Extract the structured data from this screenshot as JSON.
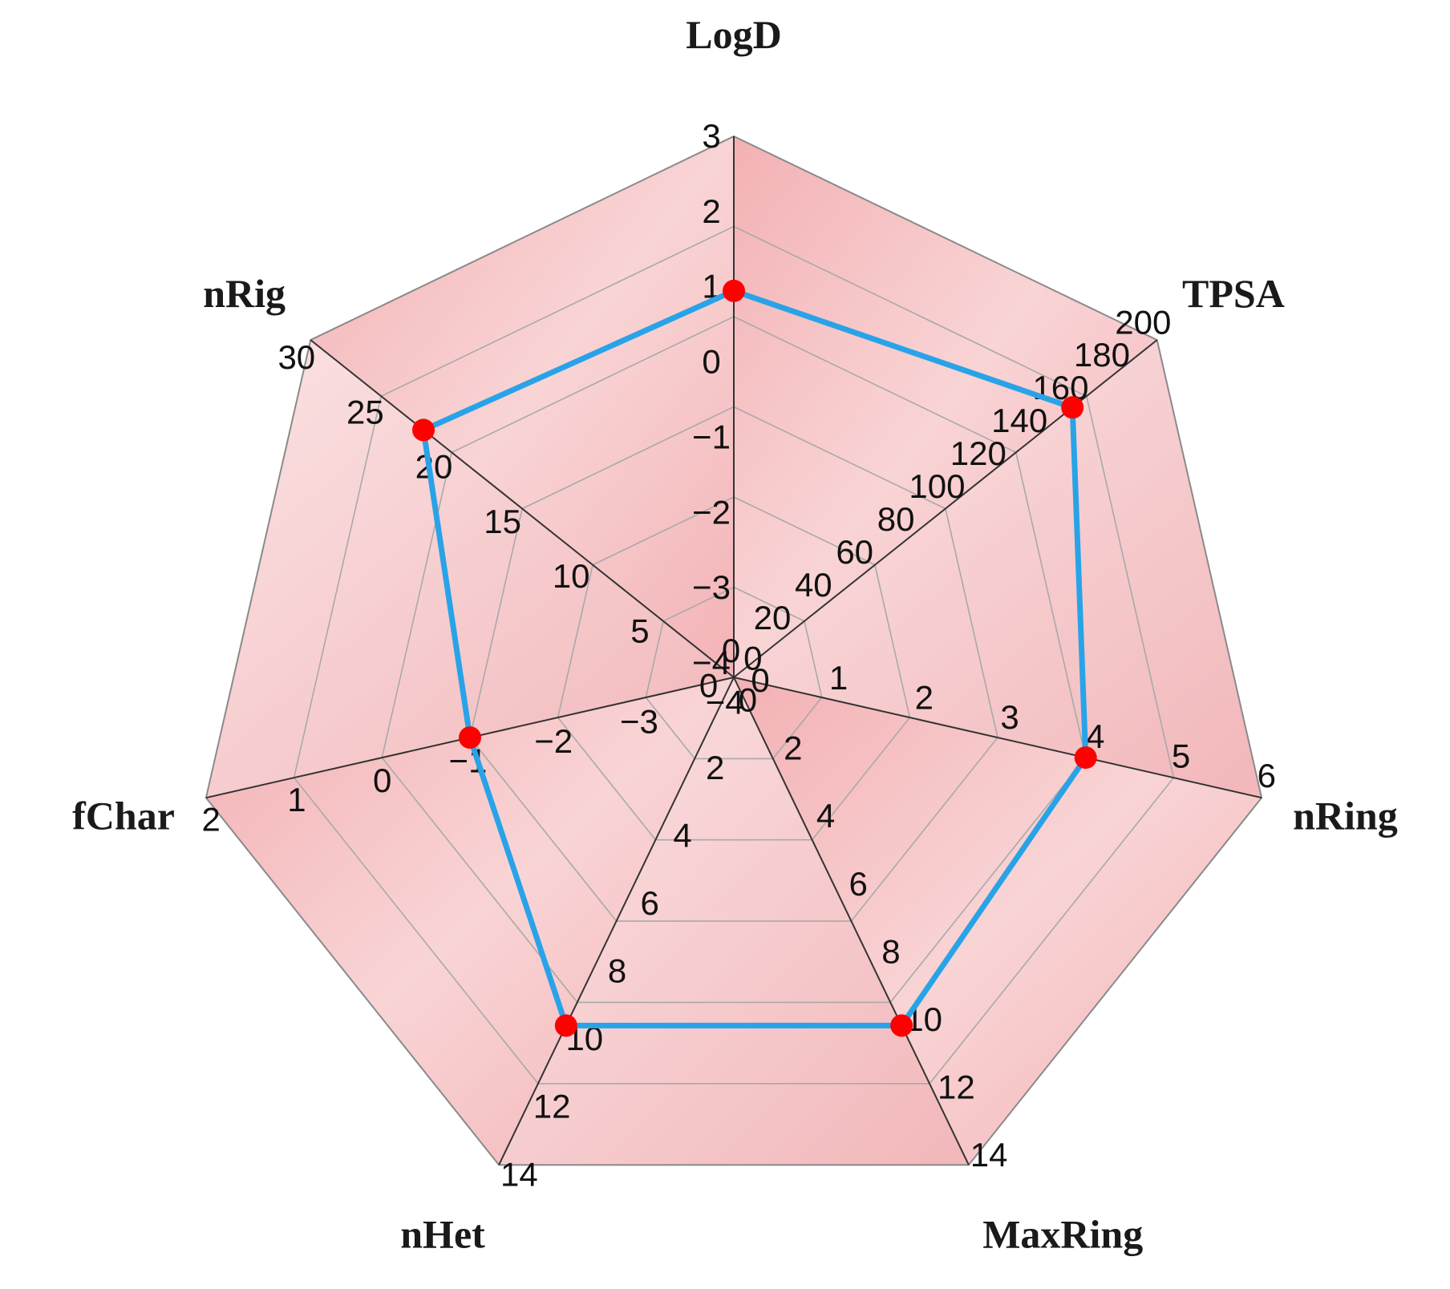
{
  "chart_data": {
    "type": "radar",
    "grid": true,
    "fill_color": "#f6c2c4",
    "line_color": "#29a3e8",
    "marker_color": "#ff0000",
    "axes": [
      {
        "name": "LogD",
        "min": -4,
        "max": 3,
        "ticks": [
          "3",
          "2",
          "1",
          "0",
          "−1",
          "−2",
          "−3",
          "−4"
        ],
        "value": 1
      },
      {
        "name": "TPSA",
        "min": 0,
        "max": 200,
        "ticks": [
          "200",
          "180",
          "160",
          "140",
          "120",
          "100",
          "80",
          "60",
          "40",
          "20",
          "0"
        ],
        "value": 160
      },
      {
        "name": "nRing",
        "min": 0,
        "max": 6,
        "ticks": [
          "6",
          "5",
          "4",
          "3",
          "2",
          "1",
          "0"
        ],
        "value": 4
      },
      {
        "name": "MaxRing",
        "min": 0,
        "max": 14,
        "ticks": [
          "14",
          "12",
          "10",
          "8",
          "6",
          "4",
          "2",
          "0"
        ],
        "value": 10
      },
      {
        "name": "nHet",
        "min": 0,
        "max": 14,
        "ticks": [
          "14",
          "12",
          "10",
          "8",
          "6",
          "4",
          "2",
          "0"
        ],
        "value": 10
      },
      {
        "name": "fChar",
        "min": -4,
        "max": 2,
        "ticks": [
          "2",
          "1",
          "0",
          "−1",
          "−2",
          "−3",
          "−4"
        ],
        "value": -1
      },
      {
        "name": "nRig",
        "min": 0,
        "max": 30,
        "ticks": [
          "30",
          "25",
          "20",
          "15",
          "10",
          "5",
          "0"
        ],
        "value": 22
      }
    ]
  }
}
